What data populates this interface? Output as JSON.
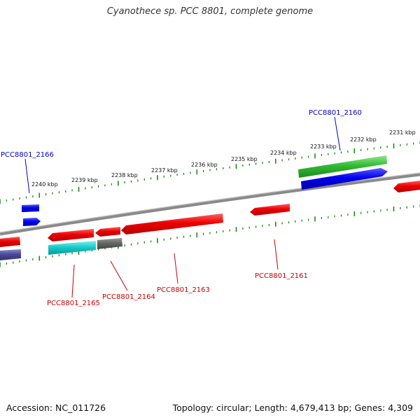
{
  "title": "Cyanothece sp. PCC 8801, complete genome",
  "footer": {
    "accession": "Accession: NC_011726",
    "stats": "Topology: circular; Length: 4,679,413 bp; Genes: 4,309"
  },
  "colors": {
    "backbone": "#7a7a7a",
    "forward_label": "#0000cc",
    "reverse_label": "#cc0000",
    "ticks": "#1a8a1a"
  },
  "ticks": {
    "labels": [
      "2240 kbp",
      "2239 kbp",
      "2238 kbp",
      "2237 kbp",
      "2236 kbp",
      "2235 kbp",
      "2234 kbp",
      "2233 kbp",
      "2232 kbp",
      "2231 kbp"
    ]
  },
  "gene_labels": {
    "g2166": "PCC8801_2166",
    "g2160": "PCC8801_2160",
    "g2165": "PCC8801_2165",
    "g2164": "PCC8801_2164",
    "g2163": "PCC8801_2163",
    "g2161": "PCC8801_2161"
  }
}
